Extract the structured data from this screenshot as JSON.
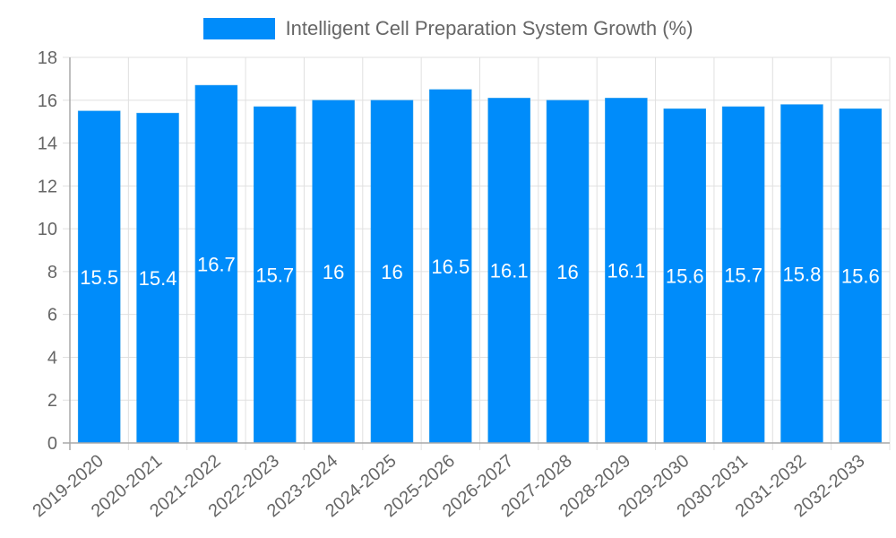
{
  "legend": {
    "label": "Intelligent Cell Preparation System Growth (%)",
    "color": "#008cfa"
  },
  "chart_data": {
    "type": "bar",
    "title": "",
    "xlabel": "",
    "ylabel": "",
    "categories": [
      "2019-2020",
      "2020-2021",
      "2021-2022",
      "2022-2023",
      "2023-2024",
      "2024-2025",
      "2025-2026",
      "2026-2027",
      "2027-2028",
      "2028-2029",
      "2029-2030",
      "2030-2031",
      "2031-2032",
      "2032-2033"
    ],
    "series": [
      {
        "name": "Intelligent Cell Preparation System Growth (%)",
        "color": "#008cfa",
        "values": [
          15.5,
          15.4,
          16.7,
          15.7,
          16,
          16,
          16.5,
          16.1,
          16,
          16.1,
          15.6,
          15.7,
          15.8,
          15.6
        ]
      }
    ],
    "ylim": [
      0,
      18
    ],
    "yticks": [
      0,
      2,
      4,
      6,
      8,
      10,
      12,
      14,
      16,
      18
    ],
    "grid": true,
    "legend_position": "top",
    "data_labels": true
  }
}
